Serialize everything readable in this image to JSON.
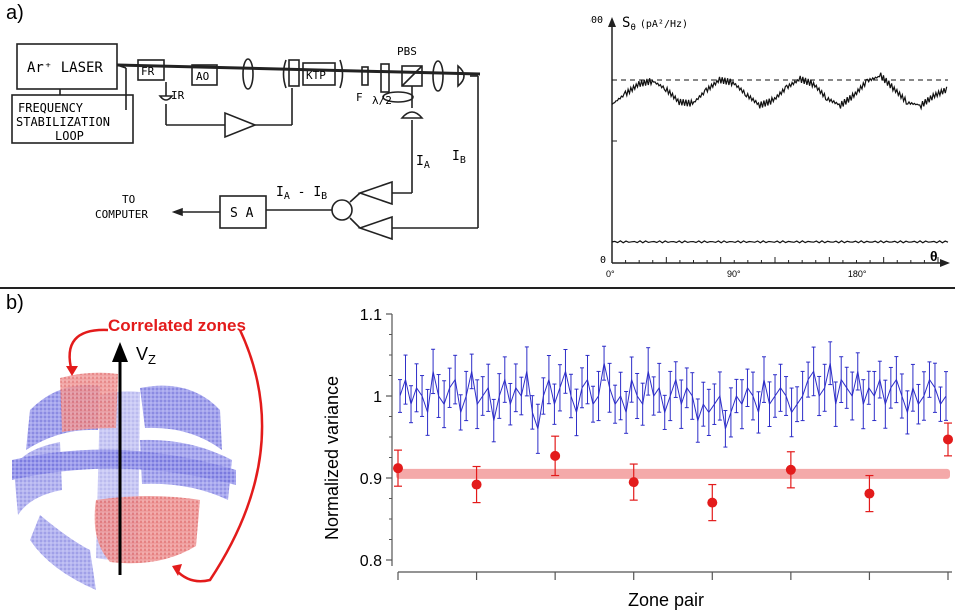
{
  "panel_a": {
    "label": "a)",
    "schematic": {
      "laser": "Ar⁺ LASER",
      "fr": "FR",
      "ao": "AO",
      "ktp": "KTP",
      "pbs": "PBS",
      "ir": "IR",
      "f": "F",
      "half_wave": "λ/2",
      "freq_loop_lines": [
        "FREQUENCY",
        "STABILIZATION",
        "LOOP"
      ],
      "ia": "I",
      "ia_sub": "A",
      "ib": "I",
      "ib_sub": "B",
      "diff_label": "I",
      "diff_sub_a": "A",
      "diff_mid": " - I",
      "diff_sub_b": "B",
      "sa": "S A",
      "computer_lines": [
        "TO",
        "COMPUTER"
      ]
    }
  },
  "panel_b": {
    "label": "b)",
    "correlated_zones": "Correlated zones",
    "vz_label": "V",
    "vz_sub": "Z"
  },
  "colors": {
    "blue_series": "#2d2dc8",
    "red_series": "#e31b1b",
    "red_band": "#f29a9a"
  },
  "chart_data": [
    {
      "type": "line",
      "title": "S",
      "title_sub": "θ",
      "title_units": "(pA²/Hz)",
      "xlabel": "θ",
      "x_ticks": [
        "0°",
        "90°",
        "180°"
      ],
      "y_ticks": [
        "300",
        "0"
      ],
      "xlim": [
        0,
        250
      ],
      "ylim": [
        0,
        300
      ],
      "series": [
        {
          "style": "solid",
          "values_description": "",
          "x": [
            0,
            10,
            20,
            30,
            40,
            50,
            60,
            70,
            80,
            90,
            100,
            110,
            120,
            130,
            140,
            150,
            160,
            170,
            180,
            190,
            200,
            210,
            220,
            230,
            240,
            250
          ],
          "y": [
            195,
            208,
            220,
            224,
            214,
            198,
            196,
            212,
            225,
            222,
            207,
            194,
            200,
            216,
            226,
            220,
            202,
            194,
            206,
            224,
            230,
            214,
            197,
            194,
            206,
            214
          ]
        },
        {
          "style": "dashed",
          "x": [
            0,
            250
          ],
          "y": [
            225,
            225
          ]
        },
        {
          "style": "solid",
          "x": [
            0,
            250
          ],
          "y": [
            26,
            26
          ]
        }
      ]
    },
    {
      "type": "scatter",
      "xlabel": "Zone pair",
      "ylabel": "Normalized variance",
      "ylim": [
        0.8,
        1.1
      ],
      "y_ticks": [
        "0.8",
        "0.9",
        "1",
        "1.1"
      ],
      "x_tick_count": 8,
      "series": [
        {
          "color": "blue",
          "y": [
            1.0,
            1.02,
            0.99,
            1.01,
            1.0,
            0.98,
            1.03,
            1.0,
            0.99,
            1.01,
            1.02,
            0.98,
            1.0,
            1.03,
            0.99,
            1.0,
            1.01,
            0.97,
            1.0,
            1.02,
            0.99,
            1.01,
            1.0,
            1.03,
            0.98,
            0.96,
            1.0,
            1.02,
            0.99,
            1.01,
            1.03,
            1.0,
            0.98,
            1.01,
            1.02,
            0.99,
            1.0,
            1.04,
            1.01,
            0.99,
            1.0,
            0.98,
            1.02,
            1.0,
            0.99,
            1.03,
            1.0,
            1.01,
            0.98,
            1.0,
            1.02,
            0.99,
            1.01,
            1.0,
            0.97,
            0.99,
            0.98,
            0.99,
            1.0,
            0.96,
            0.98,
            1.0,
            0.99,
            1.01,
            1.0,
            0.98,
            1.02,
            0.99,
            1.0,
            1.01,
            1.0,
            0.98,
            0.99,
            1.0,
            1.02,
            1.03,
            1.0,
            1.01,
            1.04,
            0.99,
            1.02,
            1.01,
            1.0,
            1.03,
            0.99,
            1.01,
            1.0,
            1.02,
            0.99,
            1.01,
            1.02,
            1.0,
            0.98,
            1.01,
            0.99,
            1.0,
            1.02,
            1.01,
            0.99,
            1.0
          ],
          "error": 0.025
        },
        {
          "color": "red",
          "x": [
            0,
            1,
            2,
            3,
            4,
            5,
            6,
            7
          ],
          "y": [
            0.912,
            0.892,
            0.927,
            0.895,
            0.87,
            0.91,
            0.881,
            0.947
          ],
          "error": [
            0.022,
            0.022,
            0.024,
            0.022,
            0.022,
            0.022,
            0.022,
            0.02
          ]
        },
        {
          "type": "band",
          "y": 0.905
        }
      ]
    }
  ]
}
